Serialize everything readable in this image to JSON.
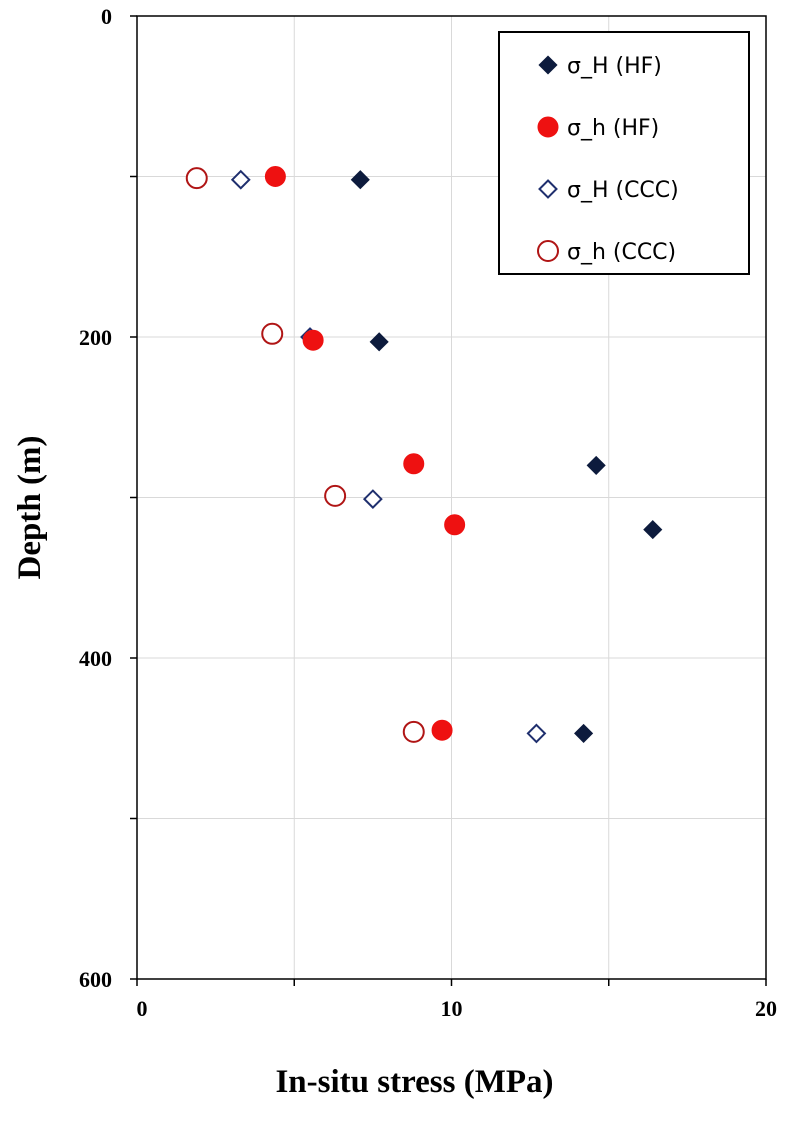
{
  "chart_data": {
    "type": "scatter",
    "title": "",
    "xlabel": "In-situ stress (MPa)",
    "ylabel": "Depth (m)",
    "xlim": [
      0,
      20
    ],
    "ylim": [
      600,
      0
    ],
    "y_inverted": true,
    "x_ticks": [
      "0",
      "10",
      "20"
    ],
    "y_ticks": [
      "0",
      "200",
      "400",
      "600"
    ],
    "x_tick_values": [
      0,
      10,
      20
    ],
    "y_tick_values": [
      0,
      200,
      400,
      600
    ],
    "grid": true,
    "legend_position": "top-right",
    "series": [
      {
        "name": "σ_H (HF)",
        "marker": "diamond-filled",
        "color": "#0d1b3d",
        "points": [
          [
            7.1,
            102
          ],
          [
            7.7,
            203
          ],
          [
            14.6,
            280
          ],
          [
            16.4,
            320
          ],
          [
            14.2,
            447
          ]
        ]
      },
      {
        "name": "σ_h (HF)",
        "marker": "circle-filled",
        "color": "#ee1111",
        "points": [
          [
            4.4,
            100
          ],
          [
            5.6,
            202
          ],
          [
            8.8,
            279
          ],
          [
            10.1,
            317
          ],
          [
            9.7,
            445
          ]
        ]
      },
      {
        "name": "σ_H (CCC)",
        "marker": "diamond-open",
        "color": "#1f2f6e",
        "points": [
          [
            3.3,
            102
          ],
          [
            5.5,
            200
          ],
          [
            7.5,
            301
          ],
          [
            12.7,
            447
          ]
        ]
      },
      {
        "name": "σ_h (CCC)",
        "marker": "circle-open",
        "color": "#b01515",
        "points": [
          [
            1.9,
            101
          ],
          [
            4.3,
            198
          ],
          [
            6.3,
            299
          ],
          [
            8.8,
            446
          ]
        ]
      }
    ]
  }
}
